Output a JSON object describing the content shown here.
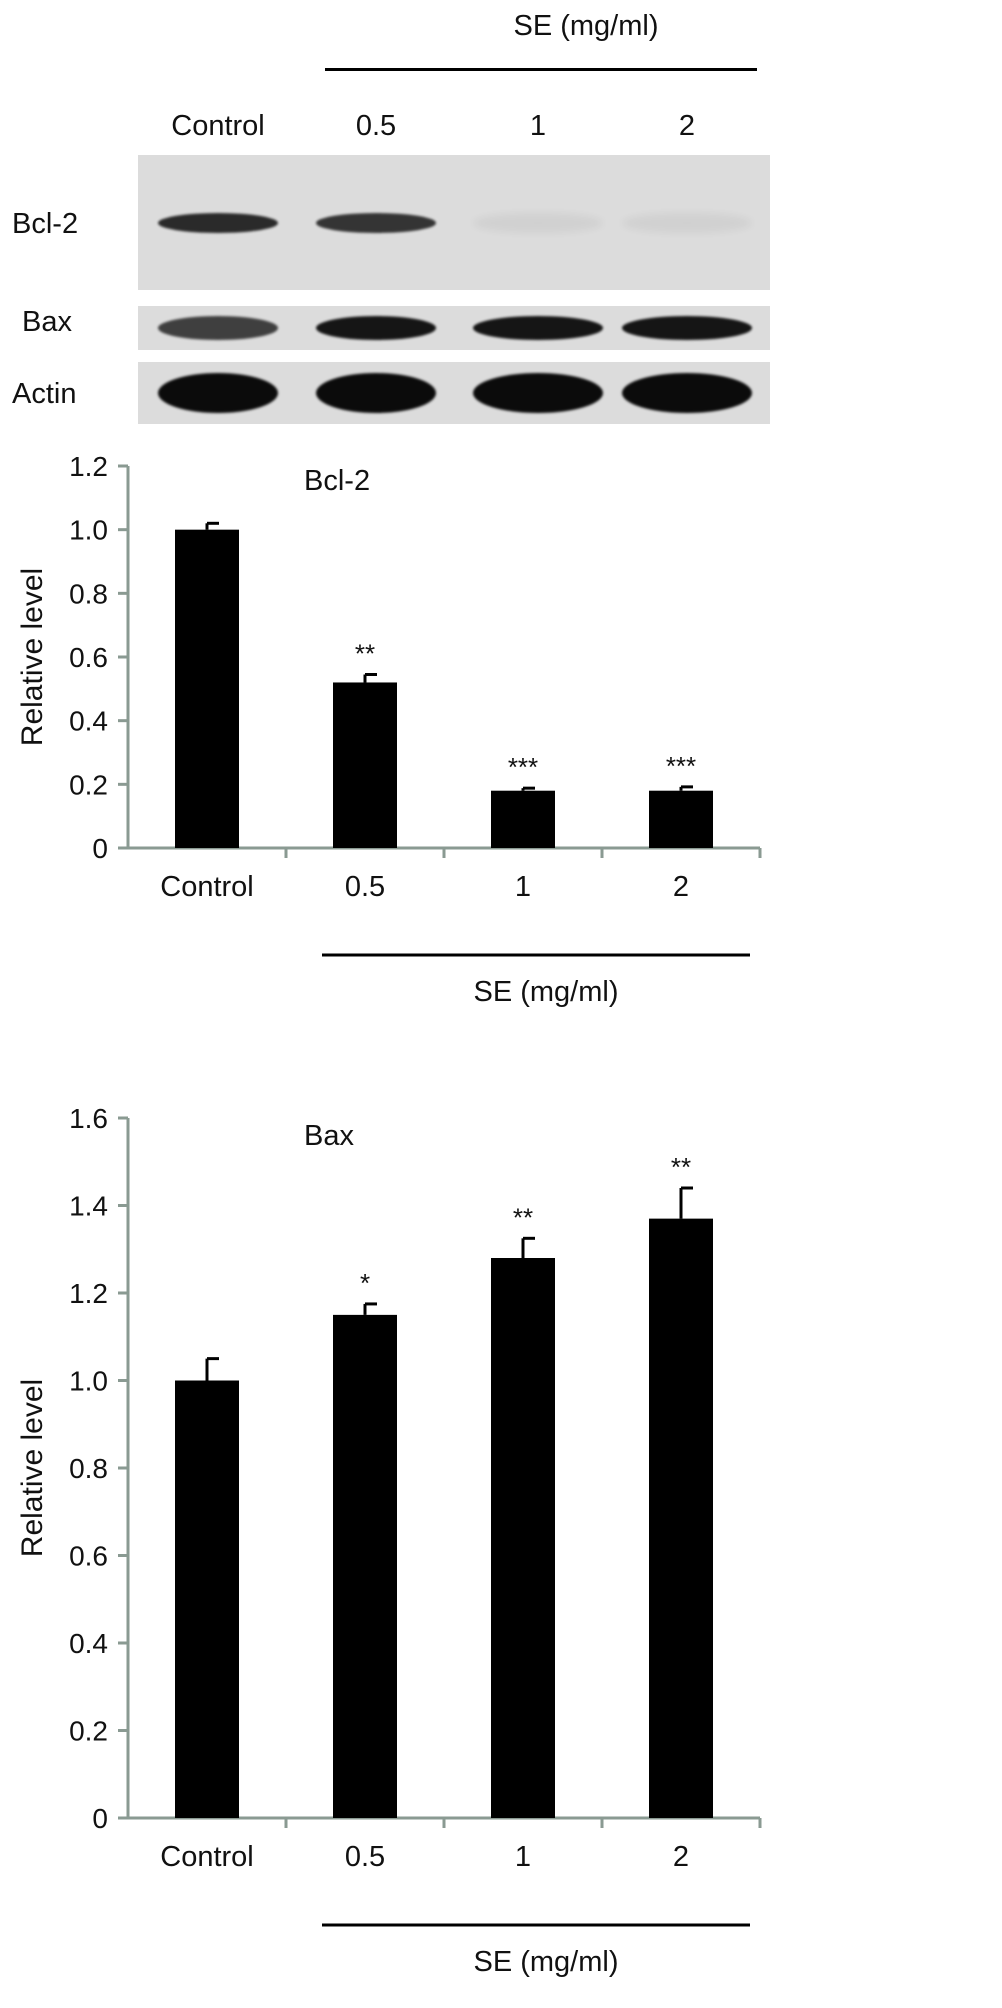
{
  "western_blot": {
    "group_label": "SE (mg/ml)",
    "lanes": [
      "Control",
      "0.5",
      "1",
      "2"
    ],
    "rows": [
      {
        "label": "Bcl-2",
        "intensity": [
          0.85,
          0.8,
          0.05,
          0.05
        ]
      },
      {
        "label": "Bax",
        "intensity": [
          0.75,
          0.95,
          0.95,
          0.95
        ]
      },
      {
        "label": "Actin",
        "intensity": [
          1.0,
          1.0,
          1.0,
          1.0
        ]
      }
    ],
    "colors": {
      "blot_bg": "#dcdcdc",
      "band": "#0b0b0b"
    }
  },
  "chart_data": [
    {
      "type": "bar",
      "title": "Bcl-2",
      "categories": [
        "Control",
        "0.5",
        "1",
        "2"
      ],
      "values": [
        1.0,
        0.52,
        0.18,
        0.18
      ],
      "errors": [
        0.02,
        0.025,
        0.008,
        0.012
      ],
      "annotations": [
        "",
        "**",
        "***",
        "***"
      ],
      "ylabel": "Relative level",
      "xgroup_label": "SE (mg/ml)",
      "ylim": [
        0,
        1.2
      ],
      "yticks": [
        "0",
        "0.2",
        "0.4",
        "0.6",
        "0.8",
        "1.0",
        "1.2"
      ],
      "ytick_values": [
        0,
        0.2,
        0.4,
        0.6,
        0.8,
        1.0,
        1.2
      ],
      "bar_color": "#000000",
      "axis_color": "#8a9a92",
      "grid": false
    },
    {
      "type": "bar",
      "title": "Bax",
      "categories": [
        "Control",
        "0.5",
        "1",
        "2"
      ],
      "values": [
        1.0,
        1.15,
        1.28,
        1.37
      ],
      "errors": [
        0.05,
        0.025,
        0.045,
        0.07
      ],
      "annotations": [
        "",
        "*",
        "**",
        "**"
      ],
      "ylabel": "Relative level",
      "xgroup_label": "SE (mg/ml)",
      "ylim": [
        0,
        1.6
      ],
      "yticks": [
        "0",
        "0.2",
        "0.4",
        "0.6",
        "0.8",
        "1.0",
        "1.2",
        "1.4",
        "1.6"
      ],
      "ytick_values": [
        0,
        0.2,
        0.4,
        0.6,
        0.8,
        1.0,
        1.2,
        1.4,
        1.6
      ],
      "bar_color": "#000000",
      "axis_color": "#8a9a92",
      "grid": false
    }
  ]
}
